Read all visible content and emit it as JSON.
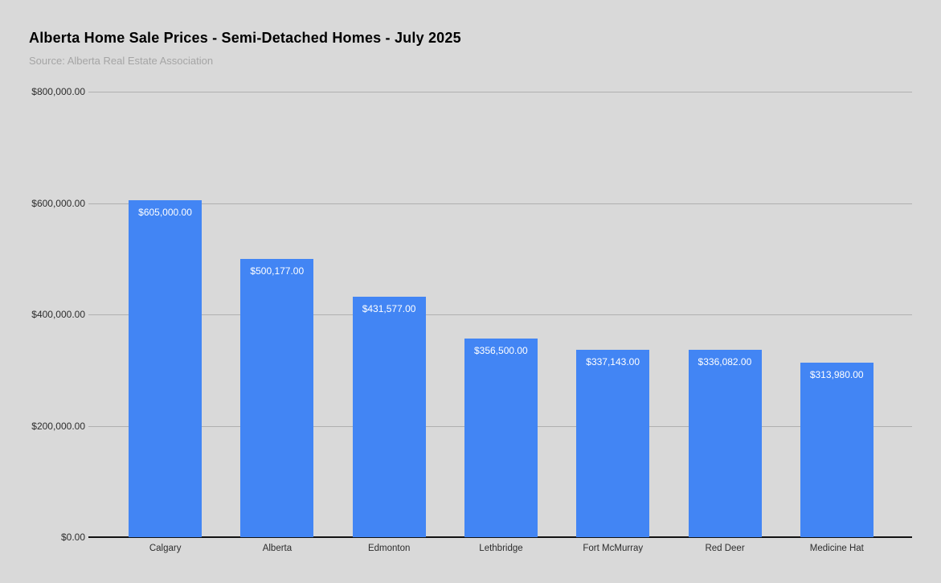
{
  "colors": {
    "background": "#d9d9d9",
    "bar": "#4285f4",
    "gridline": "#b0b0b0",
    "axis_line": "#111111",
    "title": "#000000",
    "subtitle": "#a5a5a5",
    "tick_label": "#2d2d2d",
    "bar_value_label": "#ffffff"
  },
  "chart_data": {
    "type": "bar",
    "title": "Alberta Home Sale Prices - Semi-Detached Homes - July 2025",
    "subtitle": "Source: Alberta Real Estate Association",
    "categories": [
      "Calgary",
      "Alberta",
      "Edmonton",
      "Lethbridge",
      "Fort McMurray",
      "Red Deer",
      "Medicine Hat"
    ],
    "values": [
      605000,
      500177,
      431577,
      356500,
      337143,
      336082,
      313980
    ],
    "value_labels": [
      "$605,000.00",
      "$500,177.00",
      "$431,577.00",
      "$356,500.00",
      "$337,143.00",
      "$336,082.00",
      "$313,980.00"
    ],
    "xlabel": "",
    "ylabel": "",
    "ylim": [
      0,
      800000
    ],
    "y_ticks": [
      0,
      200000,
      400000,
      600000,
      800000
    ],
    "y_tick_labels": [
      "$0.00",
      "$200,000.00",
      "$400,000.00",
      "$600,000.00",
      "$800,000.00"
    ],
    "grid": true,
    "legend_position": "none",
    "bar_color": "#4285f4"
  }
}
